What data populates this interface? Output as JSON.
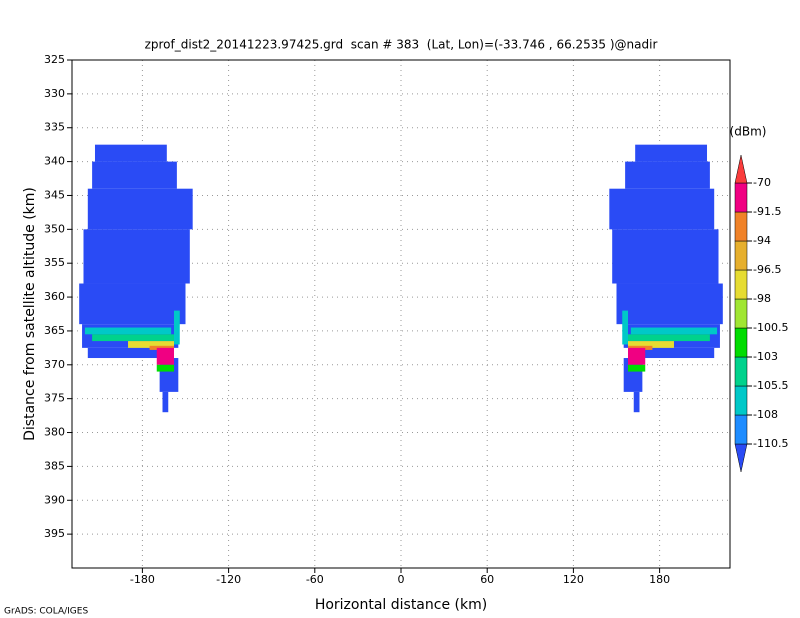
{
  "chart_data": {
    "type": "field",
    "title": "zprof_dist2_20141223.97425.grd  scan # 383  (Lat, Lon)=(-33.746 , 66.2535 )@nadir",
    "x_label": "Horizontal distance (km)",
    "y_label": "Distance from satellite altitude (km)",
    "footer": "GrADS: COLA/IGES",
    "xlim": [
      -229,
      229
    ],
    "xticks": [
      -180,
      -120,
      -60,
      0,
      60,
      120,
      180
    ],
    "ylim": [
      400,
      325
    ],
    "yticks": [
      325,
      330,
      335,
      340,
      345,
      350,
      355,
      360,
      365,
      370,
      375,
      380,
      385,
      390,
      395
    ],
    "grid": true,
    "colorbar": {
      "label": "(dBm)",
      "levels": [
        -110.5,
        -108,
        -105.5,
        -103,
        -100.5,
        -98,
        -96.5,
        -94,
        -91.5,
        -70
      ],
      "colors": [
        "#2a4bf5",
        "#1e8cff",
        "#00c8c8",
        "#00d28c",
        "#00dc00",
        "#a0e632",
        "#e6dc32",
        "#e6af2d",
        "#f08228",
        "#f00082",
        "#fa3c3c"
      ]
    },
    "cells": [
      {
        "x": [
          -213,
          -163
        ],
        "y": [
          337.5,
          340
        ],
        "value": -112
      },
      {
        "x": [
          -215,
          -156
        ],
        "y": [
          340,
          344
        ],
        "value": -112
      },
      {
        "x": [
          -218,
          -145
        ],
        "y": [
          344,
          350
        ],
        "value": -112
      },
      {
        "x": [
          -221,
          -147
        ],
        "y": [
          350,
          358
        ],
        "value": -112
      },
      {
        "x": [
          -224,
          -150
        ],
        "y": [
          358,
          364
        ],
        "value": -112
      },
      {
        "x": [
          -222,
          -155
        ],
        "y": [
          364,
          367.5
        ],
        "value": -112
      },
      {
        "x": [
          -218,
          -165
        ],
        "y": [
          367.5,
          369
        ],
        "value": -112
      },
      {
        "x": [
          -168,
          -155
        ],
        "y": [
          369,
          374
        ],
        "value": -112
      },
      {
        "x": [
          -166,
          -162
        ],
        "y": [
          374,
          377
        ],
        "value": -112
      },
      {
        "x": [
          -220,
          -160
        ],
        "y": [
          364.5,
          365.5
        ],
        "value": -107
      },
      {
        "x": [
          -215,
          -158
        ],
        "y": [
          365.5,
          366.5
        ],
        "value": -104
      },
      {
        "x": [
          -190,
          -158
        ],
        "y": [
          366.5,
          367.5
        ],
        "value": -97
      },
      {
        "x": [
          -175,
          -158
        ],
        "y": [
          367.2,
          367.8
        ],
        "value": -93
      },
      {
        "x": [
          -170,
          -158
        ],
        "y": [
          367.5,
          370
        ],
        "value": -80
      },
      {
        "x": [
          -170,
          -158
        ],
        "y": [
          370,
          371
        ],
        "value": -101
      },
      {
        "x": [
          -158,
          -154
        ],
        "y": [
          362,
          367
        ],
        "value": -107
      },
      {
        "x": [
          163,
          213
        ],
        "y": [
          337.5,
          340
        ],
        "value": -112
      },
      {
        "x": [
          156,
          215
        ],
        "y": [
          340,
          344
        ],
        "value": -112
      },
      {
        "x": [
          145,
          218
        ],
        "y": [
          344,
          350
        ],
        "value": -112
      },
      {
        "x": [
          147,
          221
        ],
        "y": [
          350,
          358
        ],
        "value": -112
      },
      {
        "x": [
          150,
          224
        ],
        "y": [
          358,
          364
        ],
        "value": -112
      },
      {
        "x": [
          155,
          222
        ],
        "y": [
          364,
          367.5
        ],
        "value": -112
      },
      {
        "x": [
          165,
          218
        ],
        "y": [
          367.5,
          369
        ],
        "value": -112
      },
      {
        "x": [
          155,
          168
        ],
        "y": [
          369,
          374
        ],
        "value": -112
      },
      {
        "x": [
          162,
          166
        ],
        "y": [
          374,
          377
        ],
        "value": -112
      },
      {
        "x": [
          160,
          220
        ],
        "y": [
          364.5,
          365.5
        ],
        "value": -107
      },
      {
        "x": [
          158,
          215
        ],
        "y": [
          365.5,
          366.5
        ],
        "value": -104
      },
      {
        "x": [
          158,
          190
        ],
        "y": [
          366.5,
          367.5
        ],
        "value": -97
      },
      {
        "x": [
          158,
          175
        ],
        "y": [
          367.2,
          367.8
        ],
        "value": -93
      },
      {
        "x": [
          158,
          170
        ],
        "y": [
          367.5,
          370
        ],
        "value": -80
      },
      {
        "x": [
          158,
          170
        ],
        "y": [
          370,
          371
        ],
        "value": -101
      },
      {
        "x": [
          154,
          158
        ],
        "y": [
          362,
          367
        ],
        "value": -107
      }
    ]
  }
}
